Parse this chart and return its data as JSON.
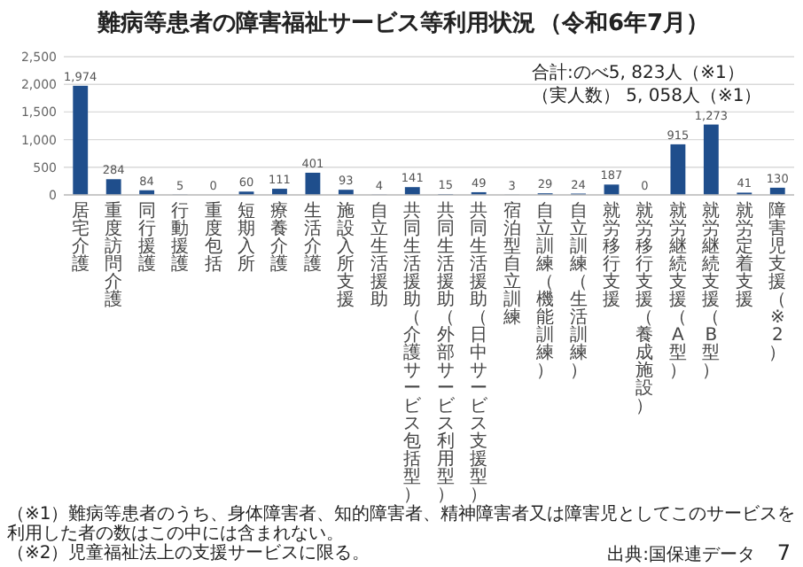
{
  "chart_data": {
    "type": "bar",
    "title": "難病等患者の障害福祉サービス等利用状況",
    "subtitle": "（令和6年7月）",
    "categories": [
      "居宅介護",
      "重度訪問介護",
      "同行援護",
      "行動援護",
      "重度包括",
      "短期入所",
      "療養介護",
      "生活介護",
      "施設入所支援",
      "自立生活援助",
      "共同生活援助（介護サービス包括型）",
      "共同生活援助（外部サービス利用型）",
      "共同生活援助（日中サービス支援型）",
      "宿泊型自立訓練",
      "自立訓練（機能訓練）",
      "自立訓練（生活訓練）",
      "就労移行支援",
      "就労移行支援（養成施設）",
      "就労継続支援（A型）",
      "就労継続支援（B型）",
      "就労定着支援",
      "障害児支援（※2）"
    ],
    "values": [
      1974,
      284,
      84,
      5,
      0,
      60,
      111,
      401,
      93,
      4,
      141,
      15,
      49,
      3,
      29,
      24,
      187,
      0,
      915,
      1273,
      41,
      130
    ],
    "value_labels": [
      "1,974",
      "284",
      "84",
      "5",
      "0",
      "60",
      "111",
      "401",
      "93",
      "4",
      "141",
      "15",
      "49",
      "3",
      "29",
      "24",
      "187",
      "0",
      "915",
      "1,273",
      "41",
      "130"
    ],
    "color": "#1f4e8c",
    "ylim": [
      0,
      2500
    ],
    "yticks": [
      0,
      500,
      {
        "value": 1000,
        "label": "1,000"
      },
      {
        "value": 1500,
        "label": "1,500"
      },
      {
        "value": 2000,
        "label": "2,000"
      },
      {
        "value": 2500,
        "label": "2,500"
      }
    ],
    "grid": "y",
    "annotations": [
      "合計:のべ5, 823人（※1）",
      "（実人数） 5, 058人（※1）",
      "（※1）難病等患者のうち、身体障害者、知的障害者、精神障害者又は障害児としてこのサービスを利用した者の数はこの中には含まれない。",
      "（※2）児童福祉法上の支援サービスに限る。",
      "出典:国保連データ",
      "7"
    ]
  }
}
